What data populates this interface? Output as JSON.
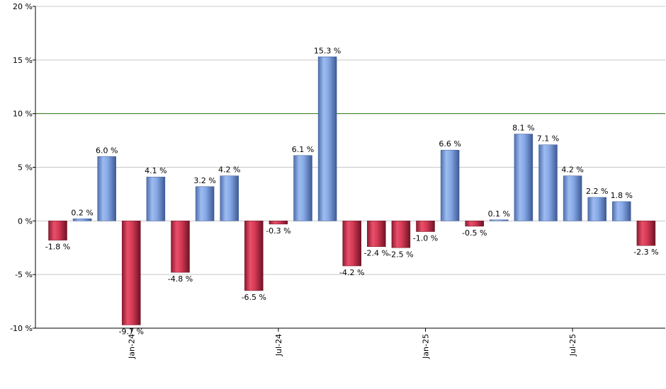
{
  "chart_data": {
    "type": "bar",
    "ylim": [
      -10,
      20
    ],
    "yticks": [
      "20 %",
      "15 %",
      "10 %",
      "5 %",
      "0 %",
      "-5 %",
      "-10 %"
    ],
    "ytick_values": [
      20,
      15,
      10,
      5,
      0,
      -5,
      -10
    ],
    "reference_line": 10,
    "grid": true,
    "values": [
      -1.8,
      0.2,
      6.0,
      -9.7,
      4.1,
      -4.8,
      3.2,
      4.2,
      -6.5,
      -0.3,
      6.1,
      15.3,
      -4.2,
      -2.4,
      -2.5,
      -1.0,
      6.6,
      -0.5,
      0.1,
      8.1,
      7.1,
      4.2,
      2.2,
      1.8,
      -2.3
    ],
    "labels": [
      "-1.8 %",
      "0.2 %",
      "6.0 %",
      "-9.7 %",
      "4.1 %",
      "-4.8 %",
      "3.2 %",
      "4.2 %",
      "-6.5 %",
      "-0.3 %",
      "6.1 %",
      "15.3 %",
      "-4.2 %",
      "-2.4 %",
      "-2.5 %",
      "-1.0 %",
      "6.6 %",
      "-0.5 %",
      "0.1 %",
      "8.1 %",
      "7.1 %",
      "4.2 %",
      "2.2 %",
      "1.8 %",
      "-2.3 %"
    ],
    "xticks": [
      {
        "label": "Jan-24",
        "index": 3
      },
      {
        "label": "Jul-24",
        "index": 9
      },
      {
        "label": "Jan-25",
        "index": 15
      },
      {
        "label": "Jul-25",
        "index": 21
      }
    ],
    "colors": {
      "positive": "#6f94d8",
      "negative": "#c42e4a",
      "reference": "#2e7d1e",
      "grid": "#c8c8c8",
      "axis": "#000000"
    }
  }
}
